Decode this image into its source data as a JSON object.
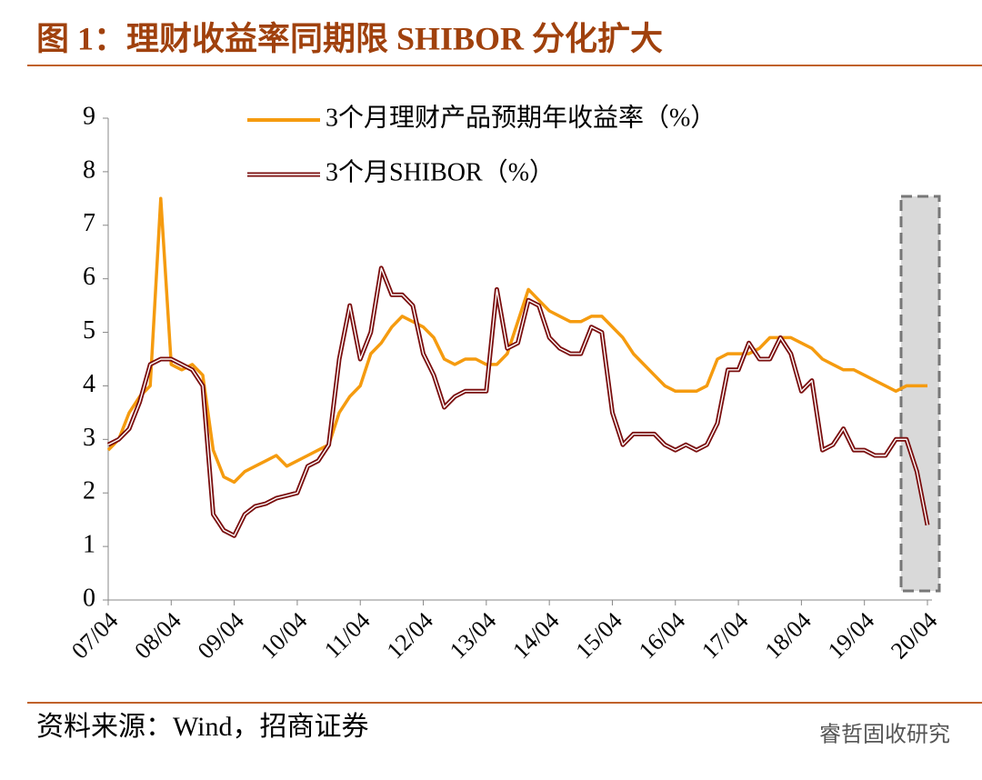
{
  "chart_data": {
    "type": "line",
    "title": "图 1：理财收益率同期限 SHIBOR 分化扩大",
    "source": "资料来源：Wind，招商证券",
    "watermark": "睿哲固收研究",
    "categories": [
      "07/04",
      null,
      null,
      null,
      null,
      null,
      "08/04",
      null,
      null,
      null,
      null,
      null,
      "09/04",
      null,
      null,
      null,
      null,
      null,
      "10/04",
      null,
      null,
      null,
      null,
      null,
      "11/04",
      null,
      null,
      null,
      null,
      null,
      "12/04",
      null,
      null,
      null,
      null,
      null,
      "13/04",
      null,
      null,
      null,
      null,
      null,
      "14/04",
      null,
      null,
      null,
      null,
      null,
      "15/04",
      null,
      null,
      null,
      null,
      null,
      "16/04",
      null,
      null,
      null,
      null,
      null,
      "17/04",
      null,
      null,
      null,
      null,
      null,
      "18/04",
      null,
      null,
      null,
      null,
      null,
      "19/04",
      null,
      null,
      null,
      null,
      null,
      "20/04"
    ],
    "series": [
      {
        "name": "3个月理财产品预期年收益率（%）",
        "color": "#f59b0f",
        "values": [
          2.8,
          3.0,
          3.5,
          3.8,
          4.0,
          7.5,
          4.4,
          4.3,
          4.4,
          4.2,
          2.8,
          2.3,
          2.2,
          2.4,
          2.5,
          2.6,
          2.7,
          2.5,
          2.6,
          2.7,
          2.8,
          2.9,
          3.5,
          3.8,
          4.0,
          4.6,
          4.8,
          5.1,
          5.3,
          5.2,
          5.1,
          4.9,
          4.5,
          4.4,
          4.5,
          4.5,
          4.4,
          4.4,
          4.6,
          5.2,
          5.8,
          5.6,
          5.4,
          5.3,
          5.2,
          5.2,
          5.3,
          5.3,
          5.1,
          4.9,
          4.6,
          4.4,
          4.2,
          4.0,
          3.9,
          3.9,
          3.9,
          4.0,
          4.5,
          4.6,
          4.6,
          4.6,
          4.7,
          4.9,
          4.9,
          4.9,
          4.8,
          4.7,
          4.5,
          4.4,
          4.3,
          4.3,
          4.2,
          4.1,
          4.0,
          3.9,
          4.0,
          4.0,
          4.0
        ]
      },
      {
        "name": "3个月SHIBOR（%）",
        "color": "#7a0e0e",
        "values": [
          2.9,
          3.0,
          3.2,
          3.7,
          4.4,
          4.5,
          4.5,
          4.4,
          4.3,
          4.0,
          1.6,
          1.3,
          1.2,
          1.6,
          1.75,
          1.8,
          1.9,
          1.95,
          2.0,
          2.5,
          2.6,
          2.9,
          4.5,
          5.5,
          4.5,
          5.0,
          6.2,
          5.7,
          5.7,
          5.5,
          4.6,
          4.2,
          3.6,
          3.8,
          3.9,
          3.9,
          3.9,
          5.8,
          4.7,
          4.8,
          5.6,
          5.5,
          4.9,
          4.7,
          4.6,
          4.6,
          5.1,
          5.0,
          3.5,
          2.9,
          3.1,
          3.1,
          3.1,
          2.9,
          2.8,
          2.9,
          2.8,
          2.9,
          3.3,
          4.3,
          4.3,
          4.8,
          4.5,
          4.5,
          4.9,
          4.6,
          3.9,
          4.1,
          2.8,
          2.9,
          3.2,
          2.8,
          2.8,
          2.7,
          2.7,
          3.0,
          3.0,
          2.4,
          1.4
        ]
      }
    ],
    "ylim": [
      0,
      9
    ],
    "yticks": [
      0,
      1,
      2,
      3,
      4,
      5,
      6,
      7,
      8,
      9
    ]
  }
}
